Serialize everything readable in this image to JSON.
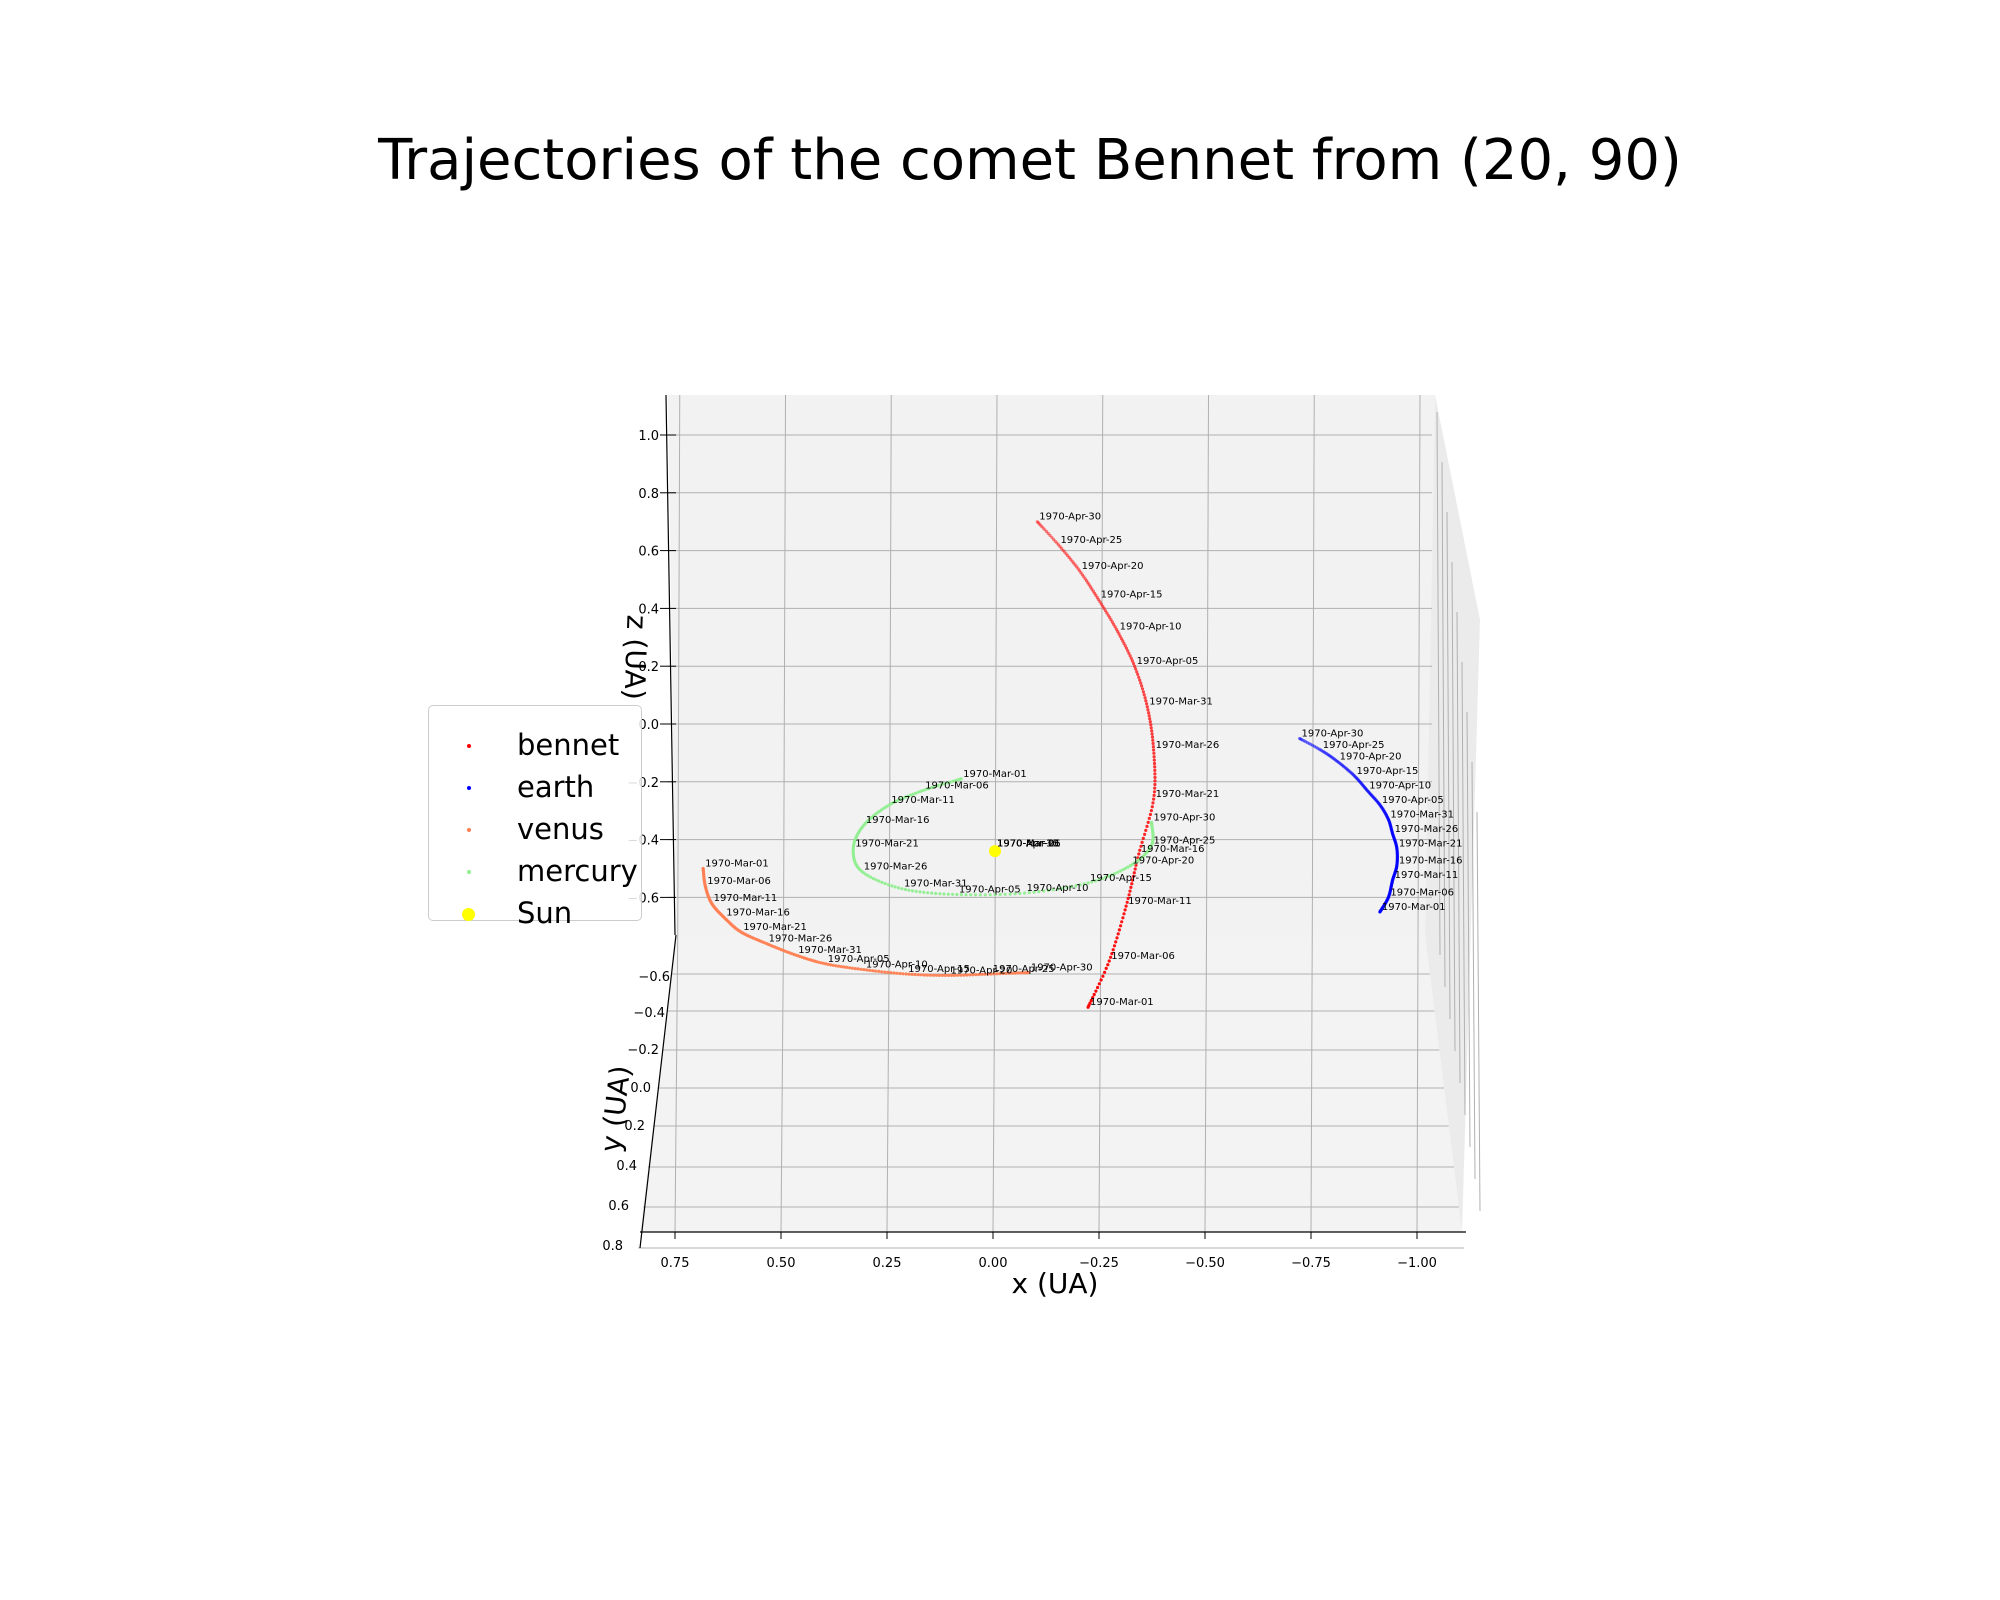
{
  "chart_data": {
    "type": "scatter",
    "title": "Trajectories of the comet Bennet from (20, 90)",
    "xlabel": "x (UA)",
    "ylabel": "y (UA)",
    "zlabel": "z (UA)",
    "projection": "3d",
    "xlim": [
      0.85,
      -1.1
    ],
    "zlim": [
      -0.72,
      1.1
    ],
    "x_ticks": [
      "0.75",
      "0.50",
      "0.25",
      "0.00",
      "−0.25",
      "−0.50",
      "−0.75",
      "−1.00"
    ],
    "y_ticks": [
      "−0.6",
      "−0.4",
      "−0.2",
      "0.0",
      "0.2",
      "0.4",
      "0.6",
      "0.8"
    ],
    "z_ticks": [
      "1.0",
      "0.8",
      "0.6",
      "0.4",
      "0.2",
      "0.0",
      "−0.2",
      "−0.4",
      "−0.6"
    ],
    "grid": true,
    "legend_position": "center-left",
    "series": [
      {
        "name": "bennet",
        "color": "#ff0000",
        "labels": [
          {
            "text": "1970-Apr-30",
            "x": -0.1,
            "z": 0.7
          },
          {
            "text": "1970-Apr-25",
            "x": -0.15,
            "z": 0.62
          },
          {
            "text": "1970-Apr-20",
            "x": -0.2,
            "z": 0.53
          },
          {
            "text": "1970-Apr-15",
            "x": -0.245,
            "z": 0.43
          },
          {
            "text": "1970-Apr-10",
            "x": -0.29,
            "z": 0.32
          },
          {
            "text": "1970-Apr-05",
            "x": -0.33,
            "z": 0.2
          },
          {
            "text": "1970-Mar-31",
            "x": -0.36,
            "z": 0.06
          },
          {
            "text": "1970-Mar-26",
            "x": -0.375,
            "z": -0.09
          },
          {
            "text": "1970-Mar-21",
            "x": -0.375,
            "z": -0.26
          },
          {
            "text": "1970-Mar-16",
            "x": -0.34,
            "z": -0.45
          },
          {
            "text": "1970-Mar-11",
            "x": -0.31,
            "z": -0.63
          },
          {
            "text": "1970-Mar-06",
            "x": -0.27,
            "z": -0.82
          },
          {
            "text": "1970-Mar-01",
            "x": -0.22,
            "z": -0.98
          }
        ]
      },
      {
        "name": "earth",
        "color": "#0000ff",
        "labels": [
          {
            "text": "1970-Apr-30",
            "x": -0.72,
            "z": -0.05
          },
          {
            "text": "1970-Apr-25",
            "x": -0.77,
            "z": -0.09
          },
          {
            "text": "1970-Apr-20",
            "x": -0.81,
            "z": -0.13
          },
          {
            "text": "1970-Apr-15",
            "x": -0.85,
            "z": -0.18
          },
          {
            "text": "1970-Apr-10",
            "x": -0.88,
            "z": -0.23
          },
          {
            "text": "1970-Apr-05",
            "x": -0.91,
            "z": -0.28
          },
          {
            "text": "1970-Mar-31",
            "x": -0.93,
            "z": -0.33
          },
          {
            "text": "1970-Mar-26",
            "x": -0.94,
            "z": -0.38
          },
          {
            "text": "1970-Mar-21",
            "x": -0.95,
            "z": -0.43
          },
          {
            "text": "1970-Mar-16",
            "x": -0.95,
            "z": -0.49
          },
          {
            "text": "1970-Mar-11",
            "x": -0.94,
            "z": -0.54
          },
          {
            "text": "1970-Mar-06",
            "x": -0.93,
            "z": -0.6
          },
          {
            "text": "1970-Mar-01",
            "x": -0.91,
            "z": -0.65
          }
        ]
      },
      {
        "name": "venus",
        "color": "#ff8052",
        "labels": [
          {
            "text": "1970-Mar-01",
            "x": 0.69,
            "z": -0.5
          },
          {
            "text": "1970-Mar-06",
            "x": 0.685,
            "z": -0.56
          },
          {
            "text": "1970-Mar-11",
            "x": 0.67,
            "z": -0.62
          },
          {
            "text": "1970-Mar-16",
            "x": 0.64,
            "z": -0.67
          },
          {
            "text": "1970-Mar-21",
            "x": 0.6,
            "z": -0.72
          },
          {
            "text": "1970-Mar-26",
            "x": 0.54,
            "z": -0.76
          },
          {
            "text": "1970-Mar-31",
            "x": 0.47,
            "z": -0.8
          },
          {
            "text": "1970-Apr-05",
            "x": 0.4,
            "z": -0.83
          },
          {
            "text": "1970-Apr-10",
            "x": 0.31,
            "z": -0.85
          },
          {
            "text": "1970-Apr-15",
            "x": 0.21,
            "z": -0.865
          },
          {
            "text": "1970-Apr-20",
            "x": 0.11,
            "z": -0.87
          },
          {
            "text": "1970-Apr-25",
            "x": 0.01,
            "z": -0.865
          },
          {
            "text": "1970-Apr-30",
            "x": -0.08,
            "z": -0.86
          }
        ]
      },
      {
        "name": "mercury",
        "color": "#90ee90",
        "labels": [
          {
            "text": "1970-Mar-01",
            "x": 0.08,
            "z": -0.19
          },
          {
            "text": "1970-Mar-06",
            "x": 0.17,
            "z": -0.23
          },
          {
            "text": "1970-Mar-11",
            "x": 0.25,
            "z": -0.28
          },
          {
            "text": "1970-Mar-16",
            "x": 0.31,
            "z": -0.35
          },
          {
            "text": "1970-Mar-21",
            "x": 0.335,
            "z": -0.43
          },
          {
            "text": "1970-Mar-26",
            "x": 0.315,
            "z": -0.51
          },
          {
            "text": "1970-Mar-31",
            "x": 0.22,
            "z": -0.57
          },
          {
            "text": "1970-Apr-05",
            "x": 0.09,
            "z": -0.59
          },
          {
            "text": "1970-Apr-10",
            "x": -0.07,
            "z": -0.585
          },
          {
            "text": "1970-Apr-15",
            "x": -0.22,
            "z": -0.55
          },
          {
            "text": "1970-Apr-20",
            "x": -0.32,
            "z": -0.49
          },
          {
            "text": "1970-Apr-25",
            "x": -0.37,
            "z": -0.42
          },
          {
            "text": "1970-Apr-30",
            "x": -0.37,
            "z": -0.34
          }
        ]
      },
      {
        "name": "Sun",
        "color": "#ffff00",
        "points": [
          {
            "x": 0.0,
            "z": -0.44
          }
        ],
        "labels": [
          {
            "text": "1970-Mar-01",
            "x": 0.0,
            "z": -0.43
          },
          {
            "text": "1970-Apr-30",
            "x": 0.0,
            "z": -0.43
          },
          {
            "text": "1970-Apr-15",
            "x": 0.0,
            "z": -0.43
          },
          {
            "text": "1970-Mar-26",
            "x": 0.0,
            "z": -0.43
          }
        ]
      }
    ]
  }
}
